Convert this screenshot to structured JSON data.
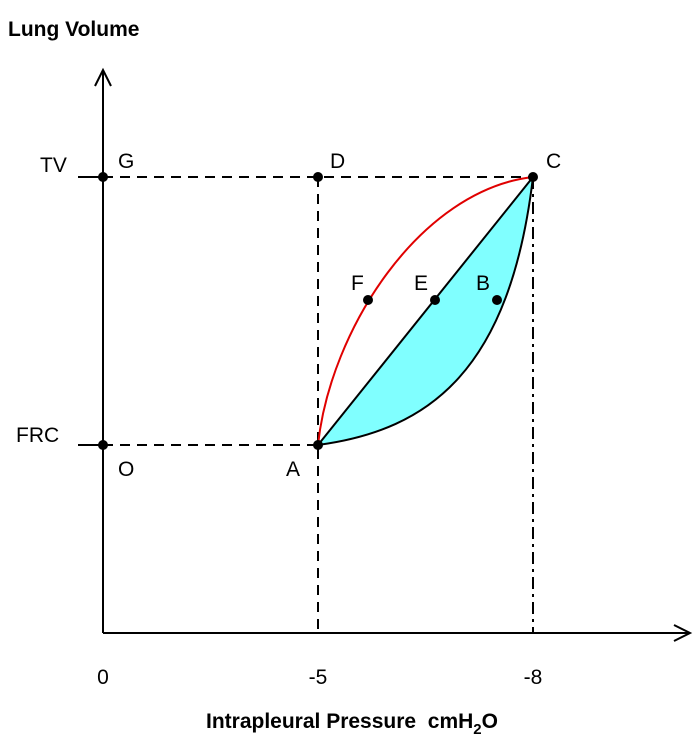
{
  "title": "Lung Volume",
  "y_labels": [
    "TV",
    "FRC"
  ],
  "points": {
    "G": "G",
    "D": "D",
    "C": "C",
    "F": "F",
    "E": "E",
    "B": "B",
    "O": "O",
    "A": "A"
  },
  "x_labels": [
    "0",
    "-5",
    "-8"
  ],
  "x_axis_title": {
    "main": "Intrapleural Pressure  cmH",
    "sub": "2",
    "end": "O"
  }
}
